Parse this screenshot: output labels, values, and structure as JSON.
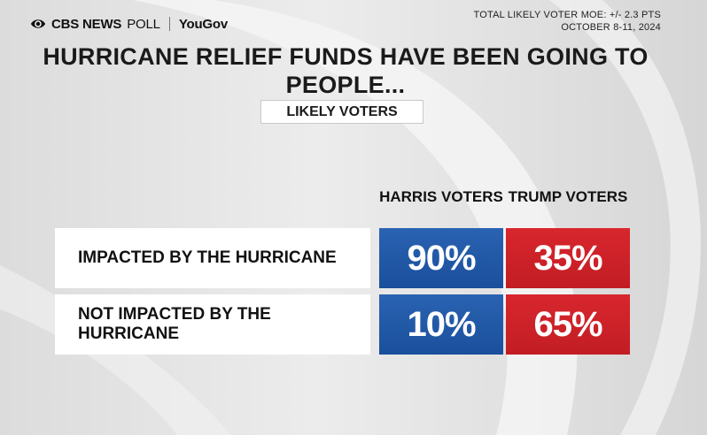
{
  "header": {
    "brand_cbs": "CBS NEWS",
    "brand_poll": "POLL",
    "brand_partner": "YouGov",
    "moe_line1": "TOTAL LIKELY VOTER MOE: +/- 2.3 PTS",
    "moe_line2": "OCTOBER 8-11, 2024"
  },
  "chart_data": {
    "type": "table",
    "title": "HURRICANE RELIEF FUNDS HAVE BEEN GOING TO PEOPLE...",
    "subtitle": "LIKELY VOTERS",
    "columns": [
      "HARRIS VOTERS",
      "TRUMP VOTERS"
    ],
    "rows": [
      {
        "label": "IMPACTED BY THE HURRICANE",
        "values": [
          "90%",
          "35%"
        ]
      },
      {
        "label": "NOT IMPACTED BY THE HURRICANE",
        "values": [
          "10%",
          "65%"
        ]
      }
    ]
  },
  "colors": {
    "harris": "#1f57a6",
    "trump": "#cc2129"
  }
}
